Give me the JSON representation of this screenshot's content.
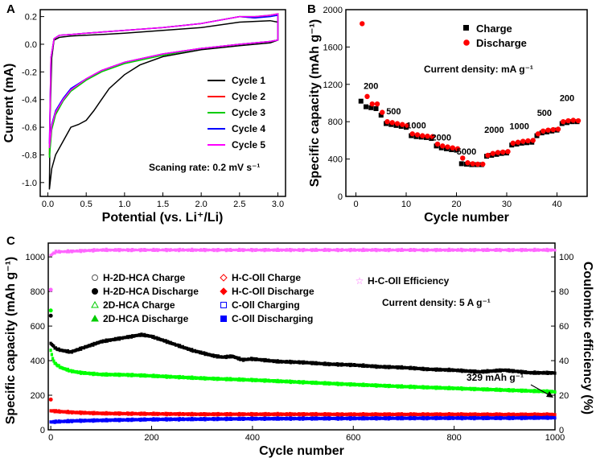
{
  "chart_data": [
    {
      "panel": "A",
      "type": "line",
      "xlabel": "Potential (vs. Li⁺/Li)",
      "ylabel": "Current (mA)",
      "xlim": [
        -0.1,
        3.1
      ],
      "ylim": [
        -1.1,
        0.25
      ],
      "xticks": [
        "0.0",
        "0.5",
        "1.0",
        "1.5",
        "2.0",
        "2.5",
        "3.0"
      ],
      "yticks": [
        "-1.0",
        "-0.8",
        "-0.6",
        "-0.4",
        "-0.2",
        "0.0",
        "0.2"
      ],
      "annotation": "Scaning rate: 0.2 mV s⁻¹",
      "legend_position": "right",
      "series": [
        {
          "name": "Cycle 1",
          "color": "#000000",
          "x": [
            0.02,
            0.05,
            0.1,
            0.2,
            0.3,
            0.4,
            0.5,
            0.6,
            0.7,
            0.8,
            1.0,
            1.2,
            1.5,
            2.0,
            2.5,
            2.9,
            3.0,
            3.0,
            2.9,
            2.5,
            2.0,
            1.5,
            1.0,
            0.7,
            0.5,
            0.3,
            0.15,
            0.08,
            0.05,
            0.03,
            0.02
          ],
          "y": [
            -1.05,
            -0.9,
            -0.8,
            -0.7,
            -0.6,
            -0.58,
            -0.55,
            -0.48,
            -0.4,
            -0.32,
            -0.22,
            -0.15,
            -0.09,
            -0.04,
            -0.01,
            0.01,
            0.03,
            0.16,
            0.17,
            0.16,
            0.12,
            0.1,
            0.08,
            0.07,
            0.065,
            0.06,
            0.05,
            0.03,
            -0.1,
            -0.5,
            -1.05
          ]
        },
        {
          "name": "Cycle 2",
          "color": "#ff0000",
          "x": [
            0.02,
            0.05,
            0.1,
            0.2,
            0.3,
            0.5,
            0.7,
            1.0,
            1.5,
            2.0,
            2.5,
            2.9,
            3.0,
            3.0,
            2.9,
            2.7,
            2.5,
            2.0,
            1.5,
            1.0,
            0.5,
            0.3,
            0.15,
            0.08,
            0.04,
            0.02
          ],
          "y": [
            -0.8,
            -0.6,
            -0.5,
            -0.4,
            -0.33,
            -0.25,
            -0.19,
            -0.13,
            -0.07,
            -0.03,
            0.0,
            0.02,
            0.03,
            0.22,
            0.21,
            0.19,
            0.2,
            0.15,
            0.12,
            0.1,
            0.08,
            0.07,
            0.065,
            0.04,
            -0.1,
            -0.8
          ]
        },
        {
          "name": "Cycle 3",
          "color": "#00cc00",
          "x": [
            0.02,
            0.05,
            0.1,
            0.2,
            0.3,
            0.5,
            0.7,
            1.0,
            1.5,
            2.0,
            2.5,
            2.9,
            3.0,
            3.0,
            2.9,
            2.7,
            2.5,
            2.0,
            1.5,
            1.0,
            0.5,
            0.3,
            0.15,
            0.08,
            0.04,
            0.02
          ],
          "y": [
            -0.82,
            -0.62,
            -0.51,
            -0.41,
            -0.34,
            -0.26,
            -0.2,
            -0.14,
            -0.08,
            -0.03,
            0.0,
            0.02,
            0.03,
            0.22,
            0.21,
            0.2,
            0.2,
            0.15,
            0.12,
            0.1,
            0.08,
            0.07,
            0.065,
            0.04,
            -0.1,
            -0.82
          ]
        },
        {
          "name": "Cycle 4",
          "color": "#0000ff",
          "x": [
            0.02,
            0.05,
            0.1,
            0.2,
            0.3,
            0.5,
            0.7,
            1.0,
            1.5,
            2.0,
            2.5,
            2.9,
            3.0,
            3.0,
            2.9,
            2.7,
            2.5,
            2.0,
            1.5,
            1.0,
            0.5,
            0.3,
            0.15,
            0.08,
            0.04,
            0.02
          ],
          "y": [
            -0.72,
            -0.58,
            -0.48,
            -0.39,
            -0.32,
            -0.25,
            -0.19,
            -0.13,
            -0.07,
            -0.03,
            0.0,
            0.02,
            0.03,
            0.21,
            0.2,
            0.19,
            0.2,
            0.15,
            0.12,
            0.1,
            0.08,
            0.07,
            0.065,
            0.04,
            -0.1,
            -0.72
          ]
        },
        {
          "name": "Cycle 5",
          "color": "#ff00ff",
          "x": [
            0.02,
            0.05,
            0.1,
            0.2,
            0.3,
            0.5,
            0.7,
            1.0,
            1.5,
            2.0,
            2.5,
            2.9,
            3.0,
            3.0,
            2.9,
            2.7,
            2.5,
            2.0,
            1.5,
            1.0,
            0.5,
            0.3,
            0.15,
            0.08,
            0.04,
            0.02
          ],
          "y": [
            -0.75,
            -0.59,
            -0.49,
            -0.4,
            -0.33,
            -0.25,
            -0.19,
            -0.13,
            -0.07,
            -0.03,
            0.0,
            0.02,
            0.03,
            0.22,
            0.21,
            0.2,
            0.2,
            0.15,
            0.12,
            0.1,
            0.08,
            0.07,
            0.065,
            0.04,
            -0.1,
            -0.75
          ]
        }
      ]
    },
    {
      "panel": "B",
      "type": "scatter",
      "xlabel": "Cycle number",
      "ylabel": "Specific capacity (mAh g⁻¹)",
      "xlim": [
        -2,
        46
      ],
      "ylim": [
        0,
        2000
      ],
      "xticks": [
        "0",
        "10",
        "20",
        "30",
        "40"
      ],
      "yticks": [
        "0",
        "400",
        "800",
        "1200",
        "1600",
        "2000"
      ],
      "annotation": "Current density: mA g⁻¹",
      "rate_labels": [
        {
          "text": "200",
          "x": 3,
          "y": 1150
        },
        {
          "text": "500",
          "x": 7.5,
          "y": 880
        },
        {
          "text": "1000",
          "x": 12,
          "y": 730
        },
        {
          "text": "2000",
          "x": 17,
          "y": 600
        },
        {
          "text": "5000",
          "x": 22,
          "y": 450
        },
        {
          "text": "2000",
          "x": 27.5,
          "y": 680
        },
        {
          "text": "1000",
          "x": 32.5,
          "y": 720
        },
        {
          "text": "500",
          "x": 37.5,
          "y": 860
        },
        {
          "text": "200",
          "x": 42,
          "y": 1020
        }
      ],
      "series": [
        {
          "name": "Charge",
          "color": "#000000",
          "marker": "square",
          "x": [
            1,
            2,
            3,
            4,
            5,
            6,
            7,
            8,
            9,
            10,
            11,
            12,
            13,
            14,
            15,
            16,
            17,
            18,
            19,
            20,
            21,
            22,
            23,
            24,
            25,
            26,
            27,
            28,
            29,
            30,
            31,
            32,
            33,
            34,
            35,
            36,
            37,
            38,
            39,
            40,
            41,
            42,
            43,
            44
          ],
          "y": [
            1020,
            960,
            950,
            940,
            870,
            780,
            770,
            760,
            750,
            740,
            650,
            640,
            635,
            630,
            620,
            540,
            520,
            510,
            500,
            495,
            350,
            345,
            340,
            340,
            340,
            430,
            440,
            450,
            460,
            465,
            550,
            560,
            570,
            575,
            580,
            650,
            680,
            690,
            700,
            710,
            780,
            790,
            800,
            800
          ]
        },
        {
          "name": "Discharge",
          "color": "#ff0000",
          "marker": "circle",
          "x": [
            1,
            2,
            3,
            4,
            5,
            6,
            7,
            8,
            9,
            10,
            11,
            12,
            13,
            14,
            15,
            16,
            17,
            18,
            19,
            20,
            21,
            22,
            23,
            24,
            25,
            26,
            27,
            28,
            29,
            30,
            31,
            32,
            33,
            34,
            35,
            36,
            37,
            38,
            39,
            40,
            41,
            42,
            43,
            44
          ],
          "y": [
            1850,
            1070,
            990,
            990,
            900,
            800,
            790,
            780,
            770,
            760,
            670,
            660,
            650,
            645,
            640,
            560,
            540,
            530,
            520,
            510,
            410,
            360,
            350,
            345,
            345,
            440,
            460,
            470,
            475,
            480,
            570,
            580,
            590,
            595,
            600,
            670,
            700,
            710,
            715,
            720,
            800,
            810,
            815,
            810
          ]
        }
      ]
    },
    {
      "panel": "C",
      "type": "scatter",
      "xlabel": "Cycle number",
      "ylabel": "Specific capacity (mAh g⁻¹)",
      "ylabel_right": "Coulombic efficiency (%)",
      "xlim": [
        -5,
        1000
      ],
      "ylim": [
        0,
        1080
      ],
      "ylim_right": [
        0,
        108
      ],
      "xticks": [
        "0",
        "200",
        "400",
        "600",
        "800",
        "1000"
      ],
      "yticks": [
        "0",
        "200",
        "400",
        "600",
        "800",
        "1000"
      ],
      "yticks_right": [
        "0",
        "20",
        "40",
        "60",
        "80",
        "100"
      ],
      "annotation": "Current density: 5 A g⁻¹",
      "callout": "329 mAh g⁻¹",
      "legend": [
        "H-2D-HCA Charge",
        "H-2D-HCA Discharge",
        "2D-HCA Charge",
        "2D-HCA Discharge",
        "H-C-Oll Charge",
        "H-C-Oll Discharge",
        "C-Oll Charging",
        "C-Oll Discharging",
        "H-C-Oll Efficiency"
      ],
      "series": [
        {
          "name": "H-2D-HCA Discharge",
          "color": "#000000",
          "x": [
            0,
            10,
            20,
            40,
            60,
            80,
            100,
            120,
            140,
            160,
            180,
            200,
            220,
            240,
            260,
            280,
            300,
            320,
            340,
            360,
            380,
            400,
            450,
            500,
            550,
            600,
            650,
            700,
            750,
            800,
            850,
            900,
            950,
            1000
          ],
          "y": [
            500,
            470,
            460,
            450,
            470,
            490,
            510,
            520,
            530,
            540,
            550,
            540,
            520,
            500,
            480,
            460,
            445,
            430,
            420,
            425,
            405,
            410,
            395,
            390,
            380,
            375,
            365,
            360,
            350,
            345,
            335,
            345,
            330,
            329
          ]
        },
        {
          "name": "2D-HCA Discharge",
          "color": "#00ff00",
          "x": [
            0,
            5,
            10,
            20,
            40,
            60,
            80,
            100,
            150,
            200,
            250,
            300,
            400,
            500,
            600,
            700,
            800,
            900,
            1000
          ],
          "y": [
            460,
            400,
            380,
            360,
            340,
            330,
            325,
            320,
            318,
            312,
            305,
            298,
            288,
            275,
            262,
            250,
            240,
            230,
            220
          ]
        },
        {
          "name": "H-C-Oll Discharge",
          "color": "#ff0000",
          "x": [
            0,
            20,
            50,
            100,
            200,
            300,
            400,
            500,
            600,
            700,
            800,
            900,
            1000
          ],
          "y": [
            110,
            105,
            100,
            95,
            92,
            90,
            90,
            90,
            89,
            89,
            89,
            88,
            88
          ]
        },
        {
          "name": "C-Oll Discharging",
          "color": "#0000ff",
          "x": [
            0,
            20,
            50,
            100,
            200,
            300,
            400,
            500,
            600,
            700,
            800,
            900,
            1000
          ],
          "y": [
            45,
            48,
            52,
            55,
            60,
            62,
            64,
            65,
            66,
            67,
            68,
            68,
            70
          ]
        },
        {
          "name": "H-C-Oll Efficiency",
          "color": "#ff66ff",
          "x": [
            0,
            10,
            20,
            100,
            200,
            300,
            400,
            500,
            600,
            700,
            800,
            900,
            1000
          ],
          "y": [
            101,
            103,
            103,
            104,
            104,
            104,
            104,
            104,
            104,
            104,
            104,
            104,
            104
          ]
        }
      ],
      "initial_points": [
        {
          "x": 0,
          "y": 660,
          "color": "#000000"
        },
        {
          "x": 0,
          "y": 690,
          "color": "#00ff00"
        },
        {
          "x": 0,
          "y": 175,
          "color": "#ff0000"
        },
        {
          "x": 0,
          "y": 810,
          "color": "#ff66ff"
        }
      ]
    }
  ]
}
